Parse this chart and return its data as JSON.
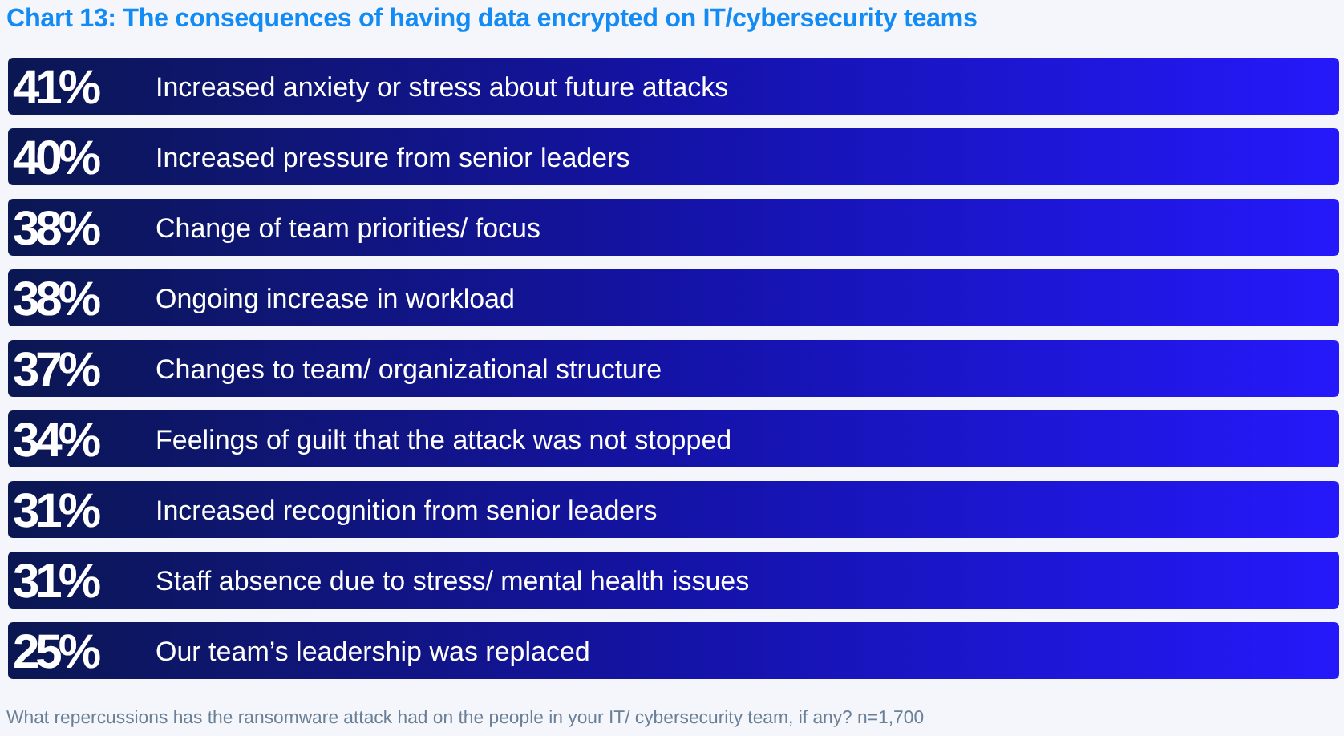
{
  "chart_data": {
    "type": "other",
    "title": "Chart 13: The consequences of having data encrypted on IT/cybersecurity teams",
    "categories": [
      "Increased anxiety or stress about future attacks",
      "Increased pressure from senior leaders",
      "Change of team priorities/ focus",
      "Ongoing increase in workload",
      "Changes to team/ organizational structure",
      "Feelings of guilt that the attack was not stopped",
      "Increased recognition from senior leaders",
      "Staff absence due to stress/ mental health issues",
      "Our team’s leadership was replaced"
    ],
    "values": [
      41,
      40,
      38,
      38,
      37,
      34,
      31,
      31,
      25
    ],
    "value_labels": [
      "41%",
      "40%",
      "38%",
      "38%",
      "37%",
      "34%",
      "31%",
      "31%",
      "25%"
    ],
    "color": "#2519fb",
    "annotations": [
      "What repercussions has the ransomware attack had on the people in your IT/ cybersecurity team, if any? n=1,700"
    ]
  }
}
